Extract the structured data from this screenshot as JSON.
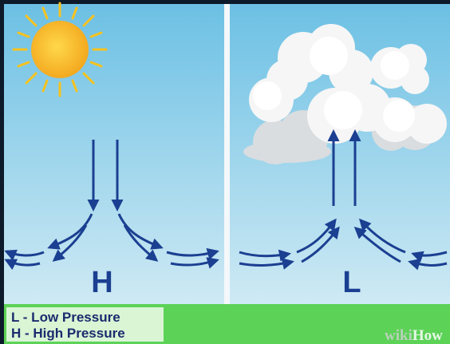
{
  "panels": [
    {
      "label": "H"
    },
    {
      "label": "L"
    }
  ],
  "legend": [
    "L - Low Pressure",
    "H - High Pressure"
  ],
  "watermark": {
    "prefix": "wiki",
    "suffix": "How"
  }
}
